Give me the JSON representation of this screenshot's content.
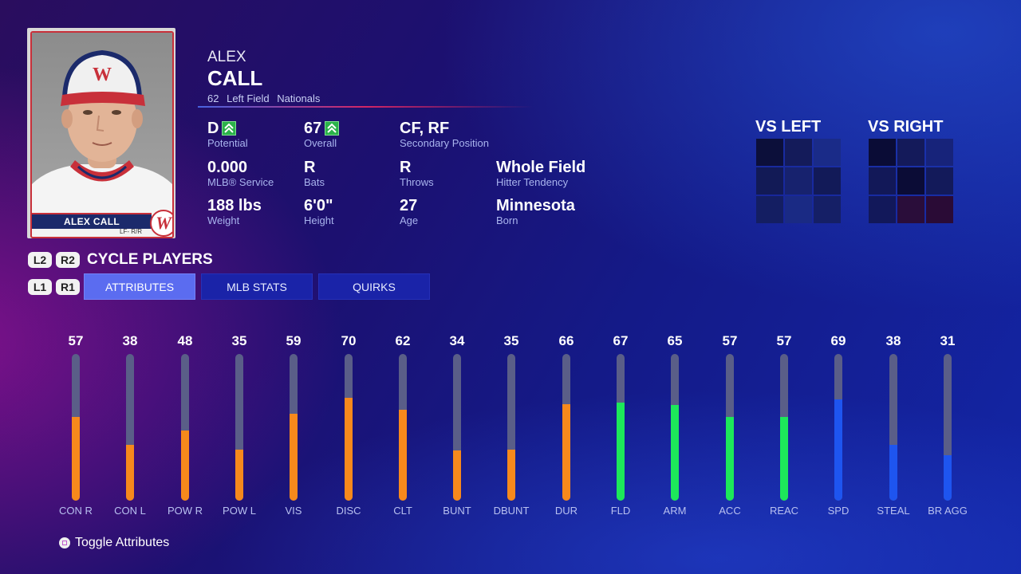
{
  "player": {
    "first_name": "ALEX",
    "last_name": "CALL",
    "number": "62",
    "position": "Left Field",
    "team": "Nationals",
    "card_name": "ALEX CALL",
    "card_pos": "LF- R/R",
    "team_logo_letter": "W"
  },
  "info": [
    {
      "value": "D",
      "label": "Potential",
      "arrow": true
    },
    {
      "value": "67",
      "label": "Overall",
      "arrow": true
    },
    {
      "value": "CF, RF",
      "label": "Secondary Position",
      "arrow": false
    },
    {
      "value": "0.000",
      "label": "MLB® Service",
      "arrow": false
    },
    {
      "value": "R",
      "label": "Bats",
      "arrow": false
    },
    {
      "value": "R",
      "label": "Throws",
      "arrow": false
    },
    {
      "value": "Whole Field",
      "label": "Hitter Tendency",
      "arrow": false
    },
    {
      "value": "188 lbs",
      "label": "Weight",
      "arrow": false
    },
    {
      "value": "6'0\"",
      "label": "Height",
      "arrow": false
    },
    {
      "value": "27",
      "label": "Age",
      "arrow": false
    },
    {
      "value": "Minnesota",
      "label": "Born",
      "arrow": false
    }
  ],
  "zones": {
    "vs_left_title": "VS LEFT",
    "vs_right_title": "VS RIGHT",
    "vs_left_colors": [
      "#0c0f3a",
      "#141b5a",
      "#1a2b88",
      "#121a56",
      "#17226e",
      "#121a58",
      "#141e62",
      "#1a2a84",
      "#151f66"
    ],
    "vs_right_colors": [
      "#0a0c36",
      "#141a5a",
      "#17237a",
      "#121858",
      "#0b0c36",
      "#131a5a",
      "#12185a",
      "#2a0d3a",
      "#2a0b36"
    ]
  },
  "controls": {
    "l2": "L2",
    "r2": "R2",
    "l1": "L1",
    "r1": "R1",
    "cycle_label": "CYCLE PLAYERS",
    "tabs": [
      "ATTRIBUTES",
      "MLB STATS",
      "QUIRKS"
    ],
    "toggle_label": "Toggle Attributes"
  },
  "colors": {
    "hitting": "#f7891c",
    "fielding": "#1de85a",
    "running": "#1e55f0"
  },
  "attributes": [
    {
      "label": "CON R",
      "value": 57,
      "group": "hitting"
    },
    {
      "label": "CON L",
      "value": 38,
      "group": "hitting"
    },
    {
      "label": "POW R",
      "value": 48,
      "group": "hitting"
    },
    {
      "label": "POW L",
      "value": 35,
      "group": "hitting"
    },
    {
      "label": "VIS",
      "value": 59,
      "group": "hitting"
    },
    {
      "label": "DISC",
      "value": 70,
      "group": "hitting"
    },
    {
      "label": "CLT",
      "value": 62,
      "group": "hitting"
    },
    {
      "label": "BUNT",
      "value": 34,
      "group": "hitting"
    },
    {
      "label": "DBUNT",
      "value": 35,
      "group": "hitting"
    },
    {
      "label": "DUR",
      "value": 66,
      "group": "hitting"
    },
    {
      "label": "FLD",
      "value": 67,
      "group": "fielding"
    },
    {
      "label": "ARM",
      "value": 65,
      "group": "fielding"
    },
    {
      "label": "ACC",
      "value": 57,
      "group": "fielding"
    },
    {
      "label": "REAC",
      "value": 57,
      "group": "fielding"
    },
    {
      "label": "SPD",
      "value": 69,
      "group": "running"
    },
    {
      "label": "STEAL",
      "value": 38,
      "group": "running"
    },
    {
      "label": "BR AGG",
      "value": 31,
      "group": "running"
    }
  ]
}
